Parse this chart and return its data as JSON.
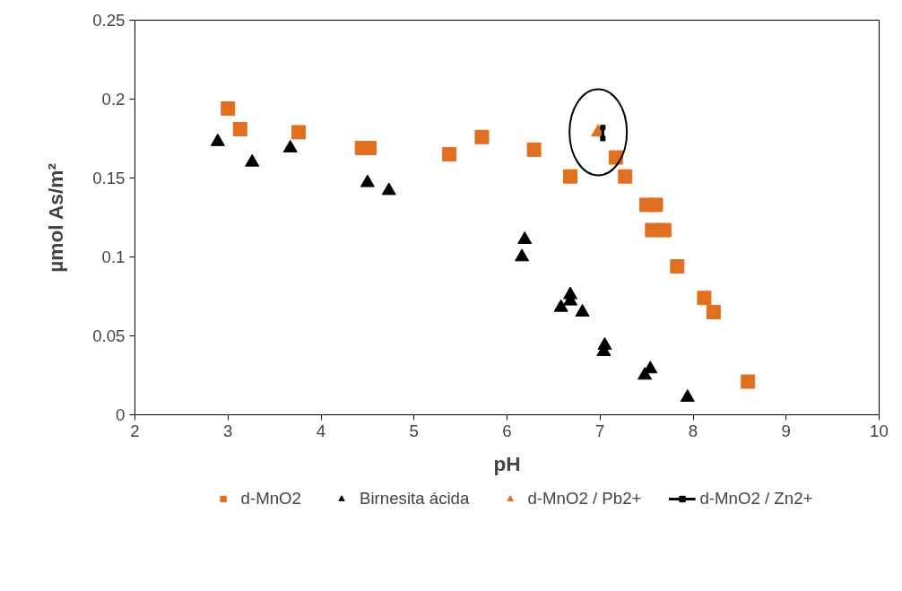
{
  "chart_data": {
    "type": "scatter",
    "xlabel": "pH",
    "ylabel": "µmol As/m²",
    "xlim": [
      2,
      10
    ],
    "ylim": [
      0,
      0.25
    ],
    "xticks": [
      2,
      3,
      4,
      5,
      6,
      7,
      8,
      9,
      10
    ],
    "yticks": [
      0,
      0.05,
      0.1,
      0.15,
      0.2,
      0.25
    ],
    "grid": false,
    "legend": "bottom",
    "series": [
      {
        "name": "d-MnO2",
        "color": "#e07020",
        "marker": "square",
        "x": [
          3.0,
          3.13,
          3.76,
          4.44,
          4.52,
          5.38,
          5.73,
          6.29,
          6.68,
          7.17,
          7.27,
          7.5,
          7.6,
          7.56,
          7.69,
          7.83,
          8.12,
          8.22,
          8.59
        ],
        "values": [
          0.194,
          0.181,
          0.179,
          0.169,
          0.169,
          0.165,
          0.176,
          0.168,
          0.151,
          0.163,
          0.151,
          0.133,
          0.133,
          0.117,
          0.117,
          0.094,
          0.074,
          0.065,
          0.021
        ]
      },
      {
        "name": "Birnesita ácida",
        "color": "#000000",
        "marker": "triangle",
        "x": [
          2.89,
          3.26,
          3.67,
          4.5,
          4.73,
          6.19,
          6.16,
          6.68,
          6.68,
          6.58,
          6.81,
          7.05,
          7.04,
          7.54,
          7.48,
          7.94
        ],
        "values": [
          0.173,
          0.16,
          0.169,
          0.147,
          0.142,
          0.111,
          0.1,
          0.076,
          0.072,
          0.068,
          0.065,
          0.044,
          0.04,
          0.029,
          0.025,
          0.011
        ]
      },
      {
        "name": "d-MnO2 / Pb2+",
        "color": "#e07020",
        "marker": "triangle",
        "x": [
          6.98
        ],
        "values": [
          0.179
        ]
      },
      {
        "name": "d-MnO2 / Zn2+",
        "color": "#000000",
        "type": "line",
        "marker": "square",
        "x": [
          7.03,
          7.03
        ],
        "values": [
          0.182,
          0.175
        ]
      }
    ]
  }
}
